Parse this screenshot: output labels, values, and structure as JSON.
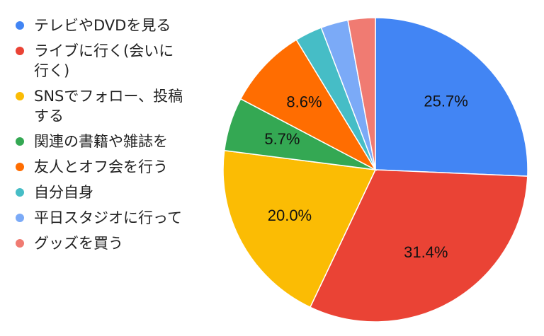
{
  "chart_data": {
    "type": "pie",
    "legend_position": "left",
    "slices": [
      {
        "label": "テレビやDVDを見る",
        "value": 25.7,
        "display": "25.7%",
        "color": "#4285F4"
      },
      {
        "label": "ライブに行く(会いに\n行く)",
        "value": 31.4,
        "display": "31.4%",
        "color": "#EA4335"
      },
      {
        "label": "SNSでフォロー、投稿\nする",
        "value": 20.0,
        "display": "20.0%",
        "color": "#FBBC04"
      },
      {
        "label": "関連の書籍や雑誌を",
        "value": 5.7,
        "display": "5.7%",
        "color": "#34A853"
      },
      {
        "label": "友人とオフ会を行う",
        "value": 8.6,
        "display": "8.6%",
        "color": "#FF6D01"
      },
      {
        "label": "自分自身",
        "value": 2.9,
        "display": "",
        "color": "#46BDC6"
      },
      {
        "label": "平日スタジオに行って",
        "value": 2.9,
        "display": "",
        "color": "#7BAAF7"
      },
      {
        "label": "グッズを買う",
        "value": 2.9,
        "display": "",
        "color": "#F07B72"
      }
    ]
  }
}
